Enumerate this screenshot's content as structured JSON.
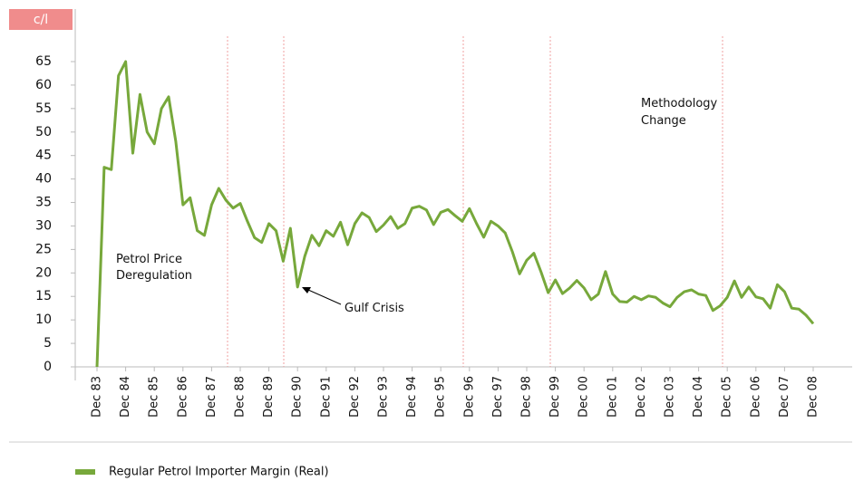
{
  "chart_data": {
    "type": "line",
    "y_label": "c/l",
    "categories": [
      "Dec 83",
      null,
      null,
      null,
      "Dec 84",
      null,
      null,
      null,
      "Dec 85",
      null,
      null,
      null,
      "Dec 86",
      null,
      null,
      null,
      "Dec 87",
      null,
      null,
      null,
      "Dec 88",
      null,
      null,
      null,
      "Dec 89",
      null,
      null,
      null,
      "Dec 90",
      null,
      null,
      null,
      "Dec 91",
      null,
      null,
      null,
      "Dec 92",
      null,
      null,
      null,
      "Dec 93",
      null,
      null,
      null,
      "Dec 94",
      null,
      null,
      null,
      "Dec 95",
      null,
      null,
      null,
      "Dec 96",
      null,
      null,
      null,
      "Dec 97",
      null,
      null,
      null,
      "Dec 98",
      null,
      null,
      null,
      "Dec 99",
      null,
      null,
      null,
      "Dec 00",
      null,
      null,
      null,
      "Dec 01",
      null,
      null,
      null,
      "Dec 02",
      null,
      null,
      null,
      "Dec 03",
      null,
      null,
      null,
      "Dec 04",
      null,
      null,
      null,
      "Dec 05",
      null,
      null,
      null,
      "Dec 06",
      null,
      null,
      null,
      "Dec 07",
      null,
      null,
      null,
      "Dec 08"
    ],
    "series": [
      {
        "name": "Regular Petrol Importer Margin (Real)",
        "color": "#77a83b",
        "values": [
          0,
          42.5,
          42,
          62,
          65,
          45.5,
          58,
          50,
          47.5,
          55,
          57.5,
          48,
          34.5,
          36,
          29,
          28,
          34.5,
          38,
          35.5,
          33.8,
          34.8,
          31,
          27.5,
          26.5,
          30.5,
          29,
          22.5,
          29.5,
          17,
          23.5,
          28,
          25.8,
          29,
          27.8,
          30.8,
          26,
          30.5,
          32.8,
          31.8,
          28.8,
          30.2,
          32,
          29.5,
          30.5,
          33.8,
          34.2,
          33.4,
          30.3,
          32.9,
          33.5,
          32.2,
          31,
          33.7,
          30.5,
          27.6,
          31,
          30,
          28.5,
          24.5,
          19.8,
          22.7,
          24.2,
          20.2,
          15.8,
          18.5,
          15.6,
          16.8,
          18.4,
          16.8,
          14.3,
          15.5,
          20.3,
          15.5,
          13.9,
          13.8,
          15,
          14.3,
          15.1,
          14.8,
          13.6,
          12.8,
          14.8,
          16,
          16.4,
          15.5,
          15.2,
          12,
          13,
          14.8,
          18.3,
          14.8,
          17,
          14.9,
          14.5,
          12.5,
          17.5,
          16,
          12.5,
          12.3,
          11,
          9.2
        ]
      }
    ],
    "ylim": [
      0,
      65
    ],
    "yticks": [
      0,
      5,
      10,
      15,
      20,
      25,
      30,
      35,
      40,
      45,
      50,
      55,
      60,
      65
    ],
    "annotations": [
      {
        "lines": [
          "Petrol Price",
          "Deregulation"
        ]
      },
      {
        "lines": [
          "Gulf Crisis"
        ]
      },
      {
        "lines": [
          "Methodology",
          "Change"
        ]
      }
    ]
  }
}
